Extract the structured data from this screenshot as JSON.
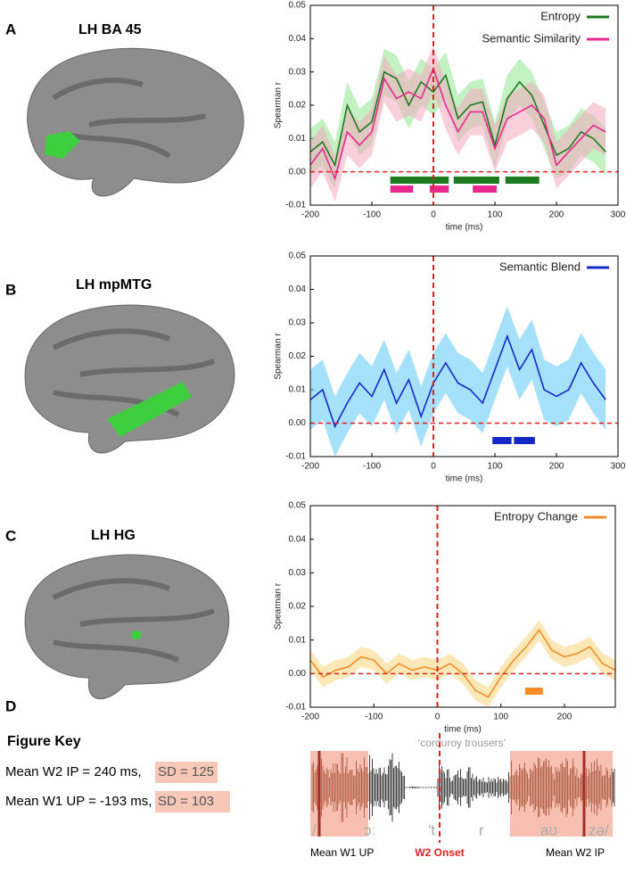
{
  "panels": [
    {
      "letter": "A",
      "region": "LH BA 45"
    },
    {
      "letter": "B",
      "region": "LH mpMTG"
    },
    {
      "letter": "C",
      "region": "LH HG"
    }
  ],
  "chart_data": [
    {
      "type": "line",
      "x_label": "time (ms)",
      "y_label": "Spearman r",
      "x": [
        -200,
        -180,
        -160,
        -140,
        -120,
        -100,
        -80,
        -60,
        -40,
        -20,
        0,
        20,
        40,
        60,
        80,
        100,
        120,
        140,
        160,
        180,
        200,
        220,
        240,
        260,
        280
      ],
      "series": [
        {
          "name": "Entropy",
          "color": "#1e7a1e",
          "band_color": "#8fe88f",
          "ci": 0.007,
          "values": [
            0.006,
            0.009,
            0.002,
            0.02,
            0.012,
            0.015,
            0.03,
            0.028,
            0.02,
            0.027,
            0.024,
            0.029,
            0.016,
            0.02,
            0.021,
            0.008,
            0.022,
            0.027,
            0.023,
            0.014,
            0.005,
            0.007,
            0.012,
            0.01,
            0.006
          ],
          "significant": [
            [
              -70,
              25
            ],
            [
              33,
              107
            ],
            [
              117,
              172
            ]
          ]
        },
        {
          "name": "Semantic Similarity",
          "color": "#e8288f",
          "band_color": "#f4a8c0",
          "ci": 0.007,
          "values": [
            0.002,
            0.007,
            -0.002,
            0.012,
            0.008,
            0.012,
            0.028,
            0.022,
            0.024,
            0.022,
            0.031,
            0.02,
            0.012,
            0.018,
            0.018,
            0.007,
            0.016,
            0.018,
            0.02,
            0.016,
            0.002,
            0.006,
            0.01,
            0.014,
            0.012
          ],
          "significant": [
            [
              -70,
              -33
            ],
            [
              -6,
              25
            ],
            [
              64,
              103
            ]
          ]
        }
      ],
      "xlim": [
        -200,
        300
      ],
      "xticks": [
        -200,
        -100,
        0,
        100,
        200,
        300
      ],
      "ylim": [
        -0.01,
        0.05
      ],
      "yticks": [
        -0.01,
        {
          "value": 0,
          "label": "0.00"
        },
        0.01,
        0.02,
        0.03,
        0.04,
        0.05
      ],
      "vline": 0,
      "hline": 0,
      "legend": "upper right"
    },
    {
      "type": "line",
      "x_label": "time (ms)",
      "y_label": "Spearman r",
      "x": [
        -200,
        -180,
        -160,
        -140,
        -120,
        -100,
        -80,
        -60,
        -40,
        -20,
        0,
        20,
        40,
        60,
        80,
        100,
        120,
        140,
        160,
        180,
        200,
        220,
        240,
        260,
        280
      ],
      "series": [
        {
          "name": "Semantic Blend",
          "color": "#1428c8",
          "band_color": "#5bc8f5",
          "ci": 0.009,
          "values": [
            0.007,
            0.01,
            -0.001,
            0.006,
            0.012,
            0.008,
            0.016,
            0.006,
            0.013,
            0.002,
            0.012,
            0.018,
            0.012,
            0.01,
            0.006,
            0.016,
            0.026,
            0.016,
            0.022,
            0.01,
            0.008,
            0.01,
            0.018,
            0.012,
            0.007
          ],
          "significant": [
            [
              96,
              127
            ],
            [
              131,
              165
            ]
          ]
        }
      ],
      "xlim": [
        -200,
        300
      ],
      "xticks": [
        -200,
        -100,
        0,
        100,
        200,
        300
      ],
      "ylim": [
        -0.01,
        0.05
      ],
      "yticks": [
        -0.01,
        {
          "value": 0,
          "label": "0.00"
        },
        0.01,
        0.02,
        0.03,
        0.04,
        0.05
      ],
      "vline": 0,
      "hline": 0,
      "legend": "upper right"
    },
    {
      "type": "line",
      "x_label": "time (ms)",
      "y_label": "Spearman r",
      "x": [
        -200,
        -180,
        -160,
        -140,
        -120,
        -100,
        -80,
        -60,
        -40,
        -20,
        0,
        20,
        40,
        60,
        80,
        100,
        120,
        140,
        160,
        180,
        200,
        220,
        240,
        260,
        280
      ],
      "series": [
        {
          "name": "Entropy Change",
          "color": "#f28c28",
          "band_color": "#f7d57a",
          "ci": 0.003,
          "values": [
            0.004,
            -0.001,
            0.001,
            0.002,
            0.005,
            0.004,
            0.0,
            0.003,
            0.001,
            0.002,
            0.001,
            0.003,
            0.0,
            -0.005,
            -0.007,
            -0.001,
            0.004,
            0.008,
            0.013,
            0.007,
            0.005,
            0.006,
            0.008,
            0.003,
            0.001
          ],
          "significant": [
            [
              138,
              166
            ]
          ]
        }
      ],
      "xlim": [
        -200,
        280
      ],
      "xticks": [
        -200,
        -100,
        0,
        100,
        200
      ],
      "ylim": [
        -0.01,
        0.05
      ],
      "yticks": [
        -0.01,
        {
          "value": 0,
          "label": "0.00"
        },
        0.01,
        0.02,
        0.03,
        0.04,
        0.05
      ],
      "vline": 0,
      "hline": 0,
      "legend": "upper right"
    }
  ],
  "figure_key": {
    "letter": "D",
    "title": "Figure Key",
    "lines": [
      {
        "text": "Mean W2 IP = 240 ms,",
        "sd": "SD = 125"
      },
      {
        "text": "Mean W1 UP = -193 ms,",
        "sd": "SD = 103"
      }
    ]
  },
  "waveform": {
    "caption": "‘corduroy trousers’",
    "phonemes": [
      "/",
      "ɔː",
      "'t",
      "r",
      "aʊ",
      "zə/"
    ],
    "w1_label": "Mean W1 UP",
    "onset_label": "W2 Onset",
    "w2_label": "Mean W2 IP"
  }
}
